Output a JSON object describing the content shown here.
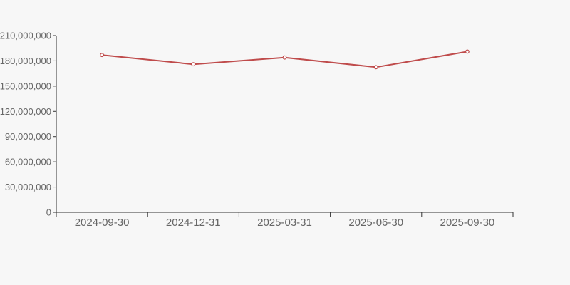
{
  "chart_data": {
    "type": "line",
    "title": "",
    "categories": [
      "2024-09-30",
      "2024-12-31",
      "2025-03-31",
      "2025-06-30",
      "2025-09-30"
    ],
    "series": [
      {
        "name": "value",
        "values": [
          187000000,
          176000000,
          184000000,
          172500000,
          191000000
        ]
      }
    ],
    "xlabel": "",
    "ylabel": "",
    "ylim": [
      0,
      210000000
    ],
    "y_tick_step": 30000000,
    "y_tick_labels": [
      "0",
      "30,000,000",
      "60,000,000",
      "90,000,000",
      "120,000,000",
      "150,000,000",
      "180,000,000",
      "210,000,000"
    ],
    "grid": false,
    "legend": "none",
    "marker": "hollow-circle",
    "colors": {
      "line": "#bf4b4b",
      "marker_fill": "#ffffff",
      "axis": "#333333",
      "label": "#666666",
      "background": "#f7f7f7"
    }
  }
}
